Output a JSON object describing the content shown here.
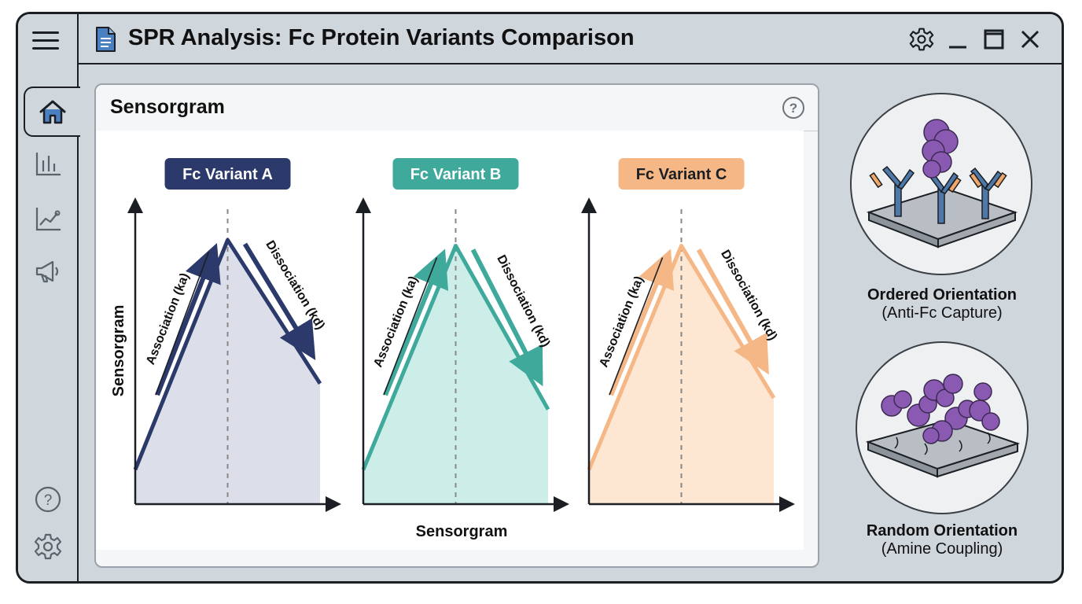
{
  "window": {
    "title": "SPR Analysis: Fc Protein Variants Comparison"
  },
  "icons": {
    "menu": "hamburger-icon",
    "document": "document-icon",
    "settings": "gear-icon",
    "minimize": "minimize-icon",
    "maximize": "maximize-icon",
    "close": "close-icon",
    "help": "question-circle-icon"
  },
  "sidebar": {
    "items": [
      {
        "name": "home",
        "icon": "home-icon",
        "active": true
      },
      {
        "name": "bar-chart",
        "icon": "bar-chart-icon",
        "active": false
      },
      {
        "name": "line-chart",
        "icon": "line-chart-icon",
        "active": false
      },
      {
        "name": "announcements",
        "icon": "megaphone-icon",
        "active": false
      }
    ],
    "bottom_items": [
      {
        "name": "help",
        "icon": "question-circle-icon"
      },
      {
        "name": "settings",
        "icon": "gear-icon"
      }
    ]
  },
  "panel": {
    "title": "Sensorgram"
  },
  "chart_data": {
    "type": "line",
    "xlabel": "Sensorgram",
    "ylabel": "Sensorgram",
    "grid": false,
    "series": [
      {
        "name": "Fc Variant A",
        "color": "#2b3a6b",
        "fill": "#dcdfea",
        "values": [
          0.12,
          0.92,
          0.42
        ],
        "association_label": "Association (ka)",
        "dissociation_label": "Dissociation (kd)"
      },
      {
        "name": "Fc Variant B",
        "color": "#3fa99c",
        "fill": "#cdeee8",
        "values": [
          0.12,
          0.9,
          0.33
        ],
        "association_label": "Association (ka)",
        "dissociation_label": "Dissociation (kd)"
      },
      {
        "name": "Fc Variant C",
        "color": "#f4b785",
        "fill": "#fde6d2",
        "values": [
          0.12,
          0.9,
          0.37
        ],
        "association_label": "Association (ka)",
        "dissociation_label": "Dissociation (kd)"
      }
    ]
  },
  "orientations": [
    {
      "title": "Ordered Orientation",
      "subtitle": "(Anti-Fc Capture)"
    },
    {
      "title": "Random Orientation",
      "subtitle": "(Amine Coupling)"
    }
  ],
  "colors": {
    "window_bg": "#cfd6dc",
    "border": "#1b1f24",
    "protein": "#8a5ab3",
    "antibody": "#4d78a8",
    "antibody_tip": "#f0a86a"
  }
}
